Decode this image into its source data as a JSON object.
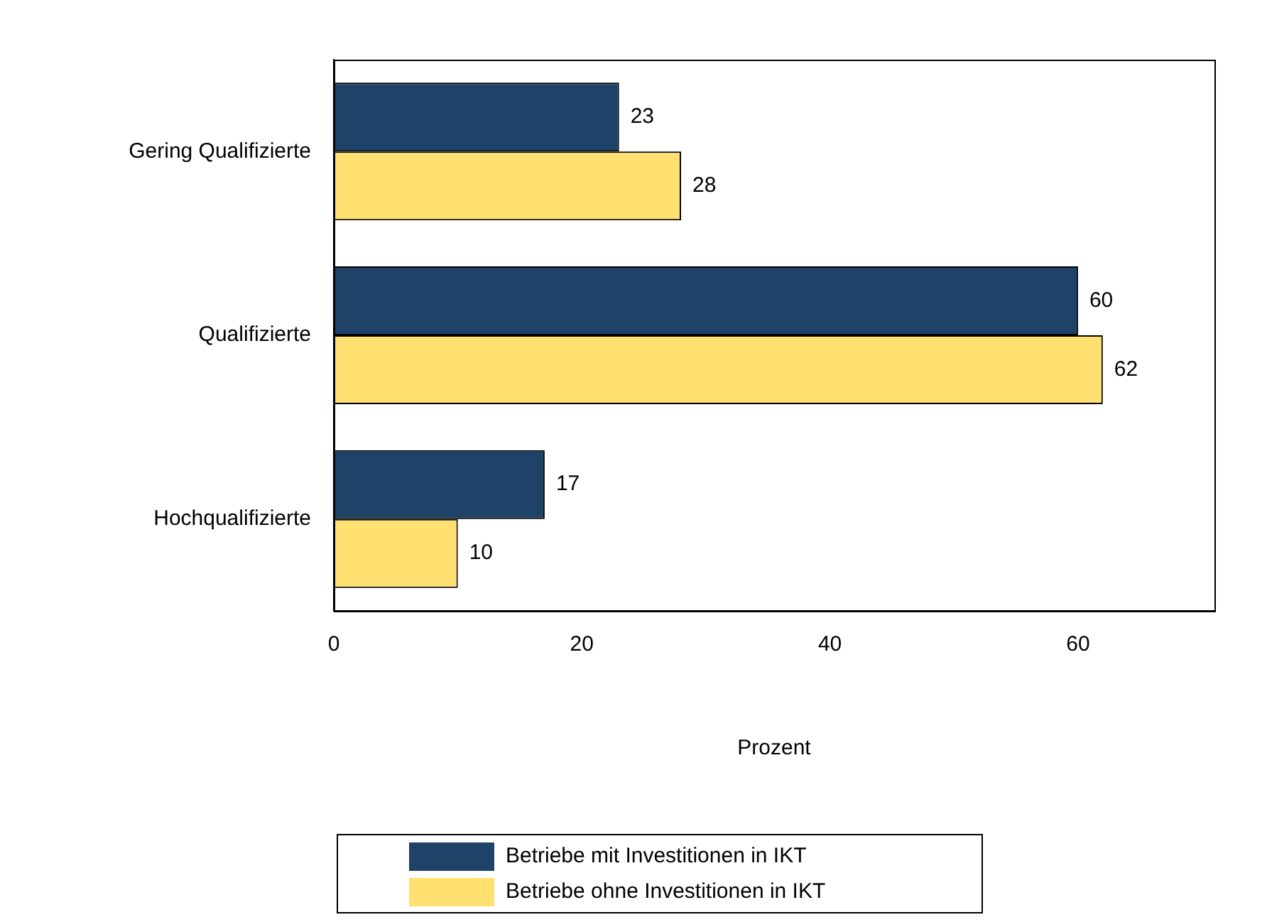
{
  "chart_data": {
    "type": "bar",
    "orientation": "horizontal",
    "xlabel": "Prozent",
    "categories": [
      "Gering Qualifizierte",
      "Qualifizierte",
      "Hochqualifizierte"
    ],
    "series": [
      {
        "name": "Betriebe mit Investitionen in IKT",
        "color": "#1f4269",
        "values": [
          23,
          60,
          17
        ]
      },
      {
        "name": "Betriebe ohne Investitionen in IKT",
        "color": "#ffe070",
        "values": [
          28,
          62,
          10
        ]
      }
    ],
    "xlim": [
      0,
      71
    ],
    "xticks": [
      0,
      20,
      40,
      60
    ],
    "data_labels": true,
    "grid": false,
    "legend": "bottom"
  }
}
